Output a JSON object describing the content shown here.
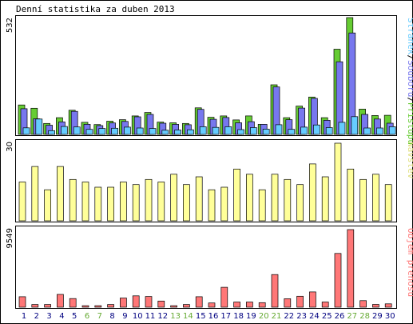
{
  "title": "Denní statistika za duben 2013",
  "colors": {
    "hits": "#66cc33",
    "files": "#7777ee",
    "pages": "#66ccff",
    "visits": "#ffff99",
    "kbytes": "#ff7777",
    "weekend_label": "#66aa33",
    "weekday_label": "#000080",
    "frame": "#000000"
  },
  "chart_data": [
    {
      "type": "bar",
      "title": "Denní statistika za duben 2013",
      "ylabel_parts": [
        {
          "text": "Stránek",
          "color": "#66ccff"
        },
        {
          "text": "/",
          "color": "#000000"
        },
        {
          "text": "Souborů",
          "color": "#7777ee"
        },
        {
          "text": "/",
          "color": "#000000"
        },
        {
          "text": "Přístupů",
          "color": "#66cc33"
        }
      ],
      "ymax_label": "532",
      "ylim": [
        0,
        532
      ],
      "categories": [
        "1",
        "2",
        "3",
        "4",
        "5",
        "6",
        "7",
        "8",
        "9",
        "10",
        "11",
        "12",
        "13",
        "14",
        "15",
        "16",
        "17",
        "18",
        "19",
        "20",
        "21",
        "22",
        "23",
        "24",
        "25",
        "26",
        "27",
        "28",
        "29",
        "30"
      ],
      "weekend_days": [
        "6",
        "7",
        "13",
        "14",
        "20",
        "21",
        "27",
        "28"
      ],
      "series": [
        {
          "key": "hits",
          "values": [
            134,
            119,
            50,
            76,
            110,
            55,
            45,
            60,
            67,
            84,
            100,
            56,
            53,
            50,
            121,
            78,
            84,
            66,
            84,
            46,
            226,
            76,
            129,
            170,
            76,
            388,
            532,
            115,
            86,
            87
          ]
        },
        {
          "key": "files",
          "values": [
            117,
            71,
            42,
            57,
            105,
            46,
            40,
            52,
            59,
            80,
            91,
            51,
            46,
            44,
            114,
            69,
            77,
            53,
            58,
            46,
            216,
            67,
            120,
            164,
            64,
            331,
            462,
            91,
            70,
            51
          ]
        },
        {
          "key": "pages",
          "values": [
            30,
            70,
            17,
            36,
            34,
            23,
            27,
            28,
            33,
            29,
            27,
            19,
            20,
            21,
            35,
            32,
            35,
            22,
            31,
            24,
            44,
            23,
            33,
            43,
            31,
            55,
            81,
            29,
            29,
            35
          ]
        }
      ]
    },
    {
      "type": "bar",
      "ylabel": "Návštěv",
      "ymax_label": "30",
      "ylim": [
        0,
        30
      ],
      "categories": [
        "1",
        "2",
        "3",
        "4",
        "5",
        "6",
        "7",
        "8",
        "9",
        "10",
        "11",
        "12",
        "13",
        "14",
        "15",
        "16",
        "17",
        "18",
        "19",
        "20",
        "21",
        "22",
        "23",
        "24",
        "25",
        "26",
        "27",
        "28",
        "29",
        "30"
      ],
      "series": [
        {
          "key": "visits",
          "values": [
            15,
            21,
            12,
            21,
            16,
            15,
            13,
            13,
            15,
            14,
            16,
            15,
            18,
            14,
            17,
            12,
            13,
            20,
            18,
            12,
            18,
            16,
            14,
            22,
            17,
            30,
            20,
            16,
            18,
            14
          ]
        }
      ]
    },
    {
      "type": "bar",
      "ylabel": "Objem přenosu",
      "ymax_label": "9549",
      "ylim": [
        0,
        9549
      ],
      "categories": [
        "1",
        "2",
        "3",
        "4",
        "5",
        "6",
        "7",
        "8",
        "9",
        "10",
        "11",
        "12",
        "13",
        "14",
        "15",
        "16",
        "17",
        "18",
        "19",
        "20",
        "21",
        "22",
        "23",
        "24",
        "25",
        "26",
        "27",
        "28",
        "29",
        "30"
      ],
      "series": [
        {
          "key": "kbytes",
          "values": [
            1290,
            330,
            330,
            1580,
            1060,
            190,
            190,
            330,
            1130,
            1400,
            1320,
            760,
            190,
            330,
            1290,
            520,
            2450,
            640,
            640,
            560,
            4020,
            1040,
            1350,
            1880,
            640,
            6620,
            9549,
            810,
            340,
            410
          ]
        }
      ]
    }
  ]
}
